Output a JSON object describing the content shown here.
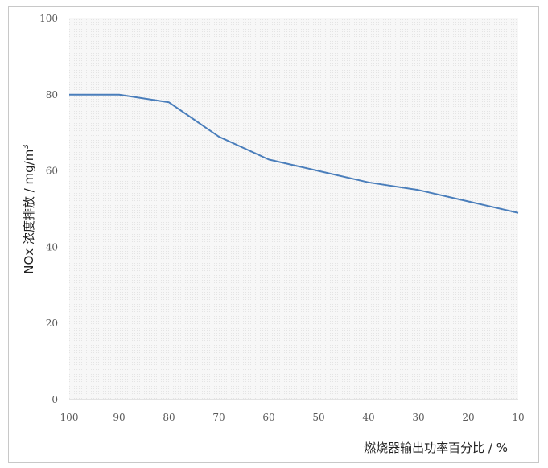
{
  "chart_data": {
    "type": "line",
    "title": "",
    "xlabel": "燃烧器输出功率百分比 / %",
    "ylabel": "NOx 浓度排放 / mg/m",
    "ylabel_superscript": "3",
    "x_reversed": true,
    "xlim": [
      10,
      100
    ],
    "ylim": [
      0,
      100
    ],
    "x_ticks": [
      "100",
      "90",
      "80",
      "70",
      "60",
      "50",
      "40",
      "30",
      "20",
      "10"
    ],
    "y_ticks": [
      "0",
      "20",
      "40",
      "60",
      "80",
      "100"
    ],
    "grid": "light dotted background",
    "line_color": "#4a7ebb",
    "series": [
      {
        "x": [
          100,
          90,
          80,
          70,
          60,
          55,
          50,
          40,
          30,
          20,
          10
        ],
        "y": [
          80,
          80,
          78,
          69,
          63,
          61.5,
          60,
          57,
          55,
          52,
          49
        ]
      }
    ]
  }
}
